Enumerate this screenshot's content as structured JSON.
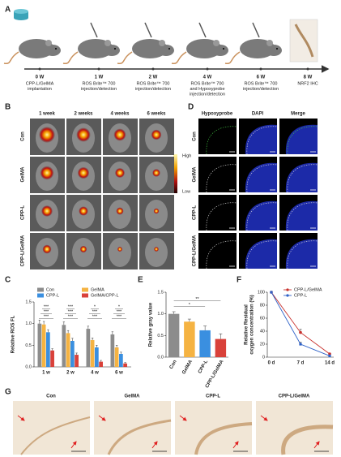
{
  "panel_labels": [
    "A",
    "B",
    "C",
    "D",
    "E",
    "F",
    "G"
  ],
  "timeline": {
    "steps": [
      {
        "time": "0 W",
        "lines": [
          "CPP-L/GelMA",
          "implantation"
        ]
      },
      {
        "time": "1 W",
        "lines": [
          "ROS Brite™ 700",
          "injection/detection"
        ]
      },
      {
        "time": "2 W",
        "lines": [
          "ROS Brite™ 700",
          "injection/detection"
        ]
      },
      {
        "time": "4 W",
        "lines": [
          "ROS Brite™ 700",
          "and Hypoxyprobe",
          "injection/detection"
        ]
      },
      {
        "time": "6 W",
        "lines": [
          "ROS Brite™ 700",
          "injection/detection"
        ]
      },
      {
        "time": "8 W",
        "lines": [
          "NRF2 IHC"
        ]
      }
    ]
  },
  "imaging": {
    "columns": [
      "1 week",
      "2 weeks",
      "4 weeks",
      "6 weeks"
    ],
    "rows": [
      "Con",
      "GelMA",
      "CPP-L",
      "CPP-L/GelMA"
    ],
    "scale_high": "High",
    "scale_low": "Low"
  },
  "hypoxia": {
    "columns": [
      "Hypoxyprobe",
      "DAPI",
      "Merge"
    ],
    "rows": [
      "Con",
      "GelMA",
      "CPP-L",
      "CPP-L/GelMA"
    ]
  },
  "histology": {
    "labels": [
      "Con",
      "GelMA",
      "CPP-L",
      "CPP-L/GelMA"
    ]
  },
  "chart_data": [
    {
      "type": "grouped_bar",
      "y_label": "Relative ROS FL",
      "categories": [
        "1 w",
        "2 w",
        "4 w",
        "6 w"
      ],
      "series": [
        {
          "name": "Con",
          "color": "#8c8c8c",
          "values": [
            1.0,
            0.97,
            0.88,
            0.75
          ],
          "errors": [
            0.08,
            0.07,
            0.06,
            0.06
          ]
        },
        {
          "name": "GelMA",
          "color": "#f5b342",
          "values": [
            0.98,
            0.78,
            0.62,
            0.45
          ],
          "errors": [
            0.07,
            0.06,
            0.05,
            0.05
          ]
        },
        {
          "name": "CPP-L",
          "color": "#3a8fe0",
          "values": [
            0.8,
            0.6,
            0.45,
            0.3
          ],
          "errors": [
            0.06,
            0.06,
            0.05,
            0.04
          ]
        },
        {
          "name": "GelMA/CPP-L",
          "color": "#d9413a",
          "values": [
            0.38,
            0.28,
            0.12,
            0.08
          ],
          "errors": [
            0.04,
            0.04,
            0.03,
            0.02
          ]
        }
      ],
      "significance": [
        [
          "***",
          "***",
          "***"
        ],
        [
          "***",
          "***",
          "***"
        ],
        [
          "***",
          "***",
          "*"
        ],
        [
          "***",
          "***",
          "*"
        ]
      ],
      "ylim": [
        0,
        1.5
      ],
      "yticks": [
        {
          "value": 0,
          "label": "0.0"
        },
        0.5,
        {
          "value": 1,
          "label": "1.0"
        },
        1.5
      ],
      "legend": "top"
    },
    {
      "type": "bar",
      "y_label": "Relative gray value",
      "categories": [
        "Con",
        "GelMA",
        "CPP-L",
        "CPP-L/GelMA"
      ],
      "values": [
        1.0,
        0.82,
        0.62,
        0.42
      ],
      "errors": [
        0.05,
        0.06,
        0.1,
        0.12
      ],
      "colors": [
        "#8c8c8c",
        "#f5b342",
        "#3a8fe0",
        "#d9413a"
      ],
      "significance": [
        "**",
        "*"
      ],
      "ylim": [
        0,
        1.5
      ],
      "yticks": [
        {
          "value": 0,
          "label": "0.0"
        },
        0.5,
        {
          "value": 1,
          "label": "1.0"
        },
        1.5
      ]
    },
    {
      "type": "line",
      "y_label": [
        "Relative Residual",
        "oxygen concentration (%)"
      ],
      "categories": [
        "0 d",
        "7 d",
        "14 d"
      ],
      "series": [
        {
          "name": "CPP-L/GelMA",
          "color": "#c8302c",
          "values": [
            100,
            38,
            5
          ],
          "errors": [
            0,
            5,
            1
          ]
        },
        {
          "name": "CPP-L",
          "color": "#2f62c8",
          "values": [
            100,
            20,
            2
          ],
          "errors": [
            0,
            3,
            1
          ]
        }
      ],
      "ylim": [
        0,
        100
      ],
      "yticks": [
        0,
        20,
        40,
        60,
        80,
        100
      ],
      "legend": "top-right"
    }
  ]
}
